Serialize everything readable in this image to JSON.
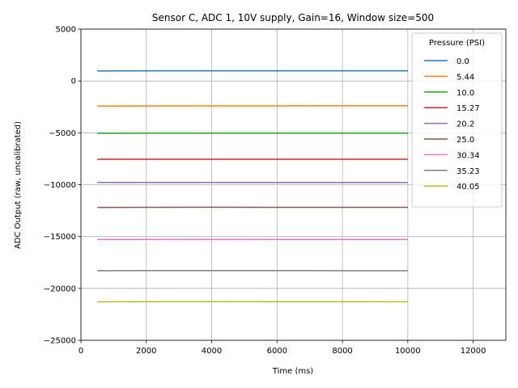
{
  "chart_data": {
    "type": "line",
    "title": "Sensor C, ADC 1, 10V supply, Gain=16, Window size=500",
    "xlabel": "Time (ms)",
    "ylabel": "ADC Output (raw, uncalibrated)",
    "xlim": [
      0,
      13000
    ],
    "ylim": [
      -25000,
      5000
    ],
    "xticks": [
      0,
      2000,
      4000,
      6000,
      8000,
      10000,
      12000
    ],
    "yticks": [
      -25000,
      -20000,
      -15000,
      -10000,
      -5000,
      0,
      5000
    ],
    "xtick_labels": [
      "0",
      "2000",
      "4000",
      "6000",
      "8000",
      "10000",
      "12000"
    ],
    "ytick_labels": [
      "−25000",
      "−20000",
      "−15000",
      "−10000",
      "−5000",
      "0",
      "5000"
    ],
    "grid": true,
    "legend": {
      "title": "Pressure (PSI)",
      "placement": "top-right"
    },
    "x": [
      500,
      2000,
      4000,
      6000,
      8000,
      10000
    ],
    "series": [
      {
        "name": "0.0",
        "color": "#1f77b4",
        "values": [
          970,
          975,
          980,
          980,
          975,
          975
        ]
      },
      {
        "name": "5.44",
        "color": "#ff7f0e",
        "values": [
          -2420,
          -2410,
          -2400,
          -2400,
          -2395,
          -2395
        ]
      },
      {
        "name": "10.0",
        "color": "#2ca02c",
        "values": [
          -5040,
          -5030,
          -5030,
          -5030,
          -5030,
          -5035
        ]
      },
      {
        "name": "15.27",
        "color": "#d62728",
        "values": [
          -7550,
          -7550,
          -7550,
          -7545,
          -7545,
          -7550
        ]
      },
      {
        "name": "20.2",
        "color": "#9467bd",
        "values": [
          -9780,
          -9790,
          -9790,
          -9785,
          -9785,
          -9785
        ]
      },
      {
        "name": "25.0",
        "color": "#8c564b",
        "values": [
          -12190,
          -12180,
          -12175,
          -12180,
          -12180,
          -12185
        ]
      },
      {
        "name": "30.34",
        "color": "#e377c2",
        "values": [
          -15280,
          -15280,
          -15270,
          -15275,
          -15275,
          -15280
        ]
      },
      {
        "name": "35.23",
        "color": "#7f7f7f",
        "values": [
          -18290,
          -18280,
          -18275,
          -18280,
          -18285,
          -18285
        ]
      },
      {
        "name": "40.05",
        "color": "#bcbd22",
        "values": [
          -21290,
          -21280,
          -21270,
          -21275,
          -21280,
          -21285
        ]
      }
    ]
  }
}
